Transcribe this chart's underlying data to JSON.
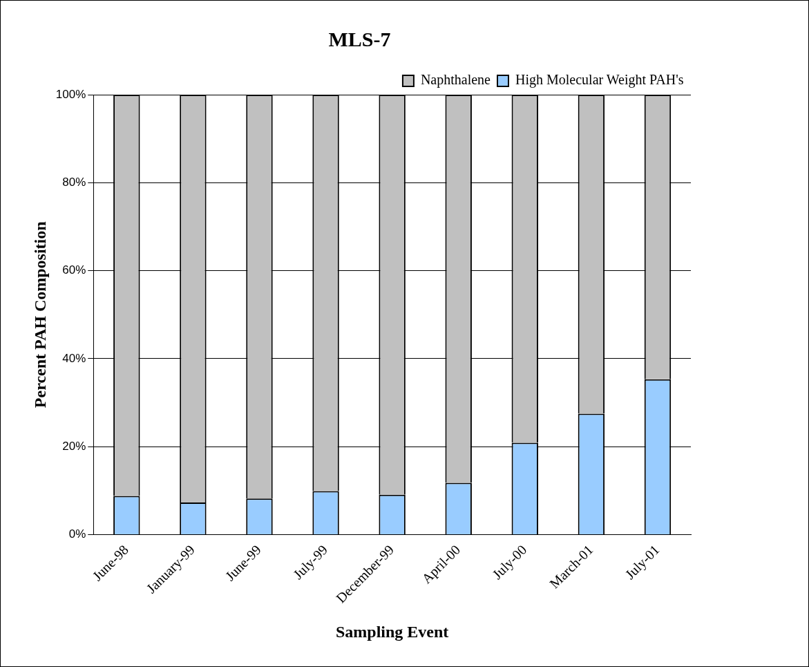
{
  "chart_data": {
    "type": "bar",
    "title": "MLS-7",
    "xlabel": "Sampling Event",
    "ylabel": "Percent PAH Composition",
    "categories": [
      "June-98",
      "January-99",
      "June-99",
      "July-99",
      "December-99",
      "April-00",
      "July-00",
      "March-01",
      "July-01"
    ],
    "stacked": true,
    "series": [
      {
        "name": "High Molecular Weight PAH's",
        "color": "#99ccff",
        "values": [
          8.8,
          7.3,
          8.2,
          9.9,
          9.1,
          11.8,
          20.9,
          27.5,
          35.3
        ]
      },
      {
        "name": "Naphthalene",
        "color": "#c0c0c0",
        "values": [
          91.2,
          92.7,
          91.8,
          90.1,
          90.9,
          88.2,
          79.1,
          72.5,
          64.7
        ]
      }
    ],
    "ylim": [
      0,
      100
    ],
    "yticks": [
      {
        "value": 0,
        "label": "0%"
      },
      {
        "value": 20,
        "label": "20%"
      },
      {
        "value": 40,
        "label": "40%"
      },
      {
        "value": 60,
        "label": "60%"
      },
      {
        "value": 80,
        "label": "80%"
      },
      {
        "value": 100,
        "label": "100%"
      }
    ],
    "grid": "y",
    "legend": "top right"
  }
}
